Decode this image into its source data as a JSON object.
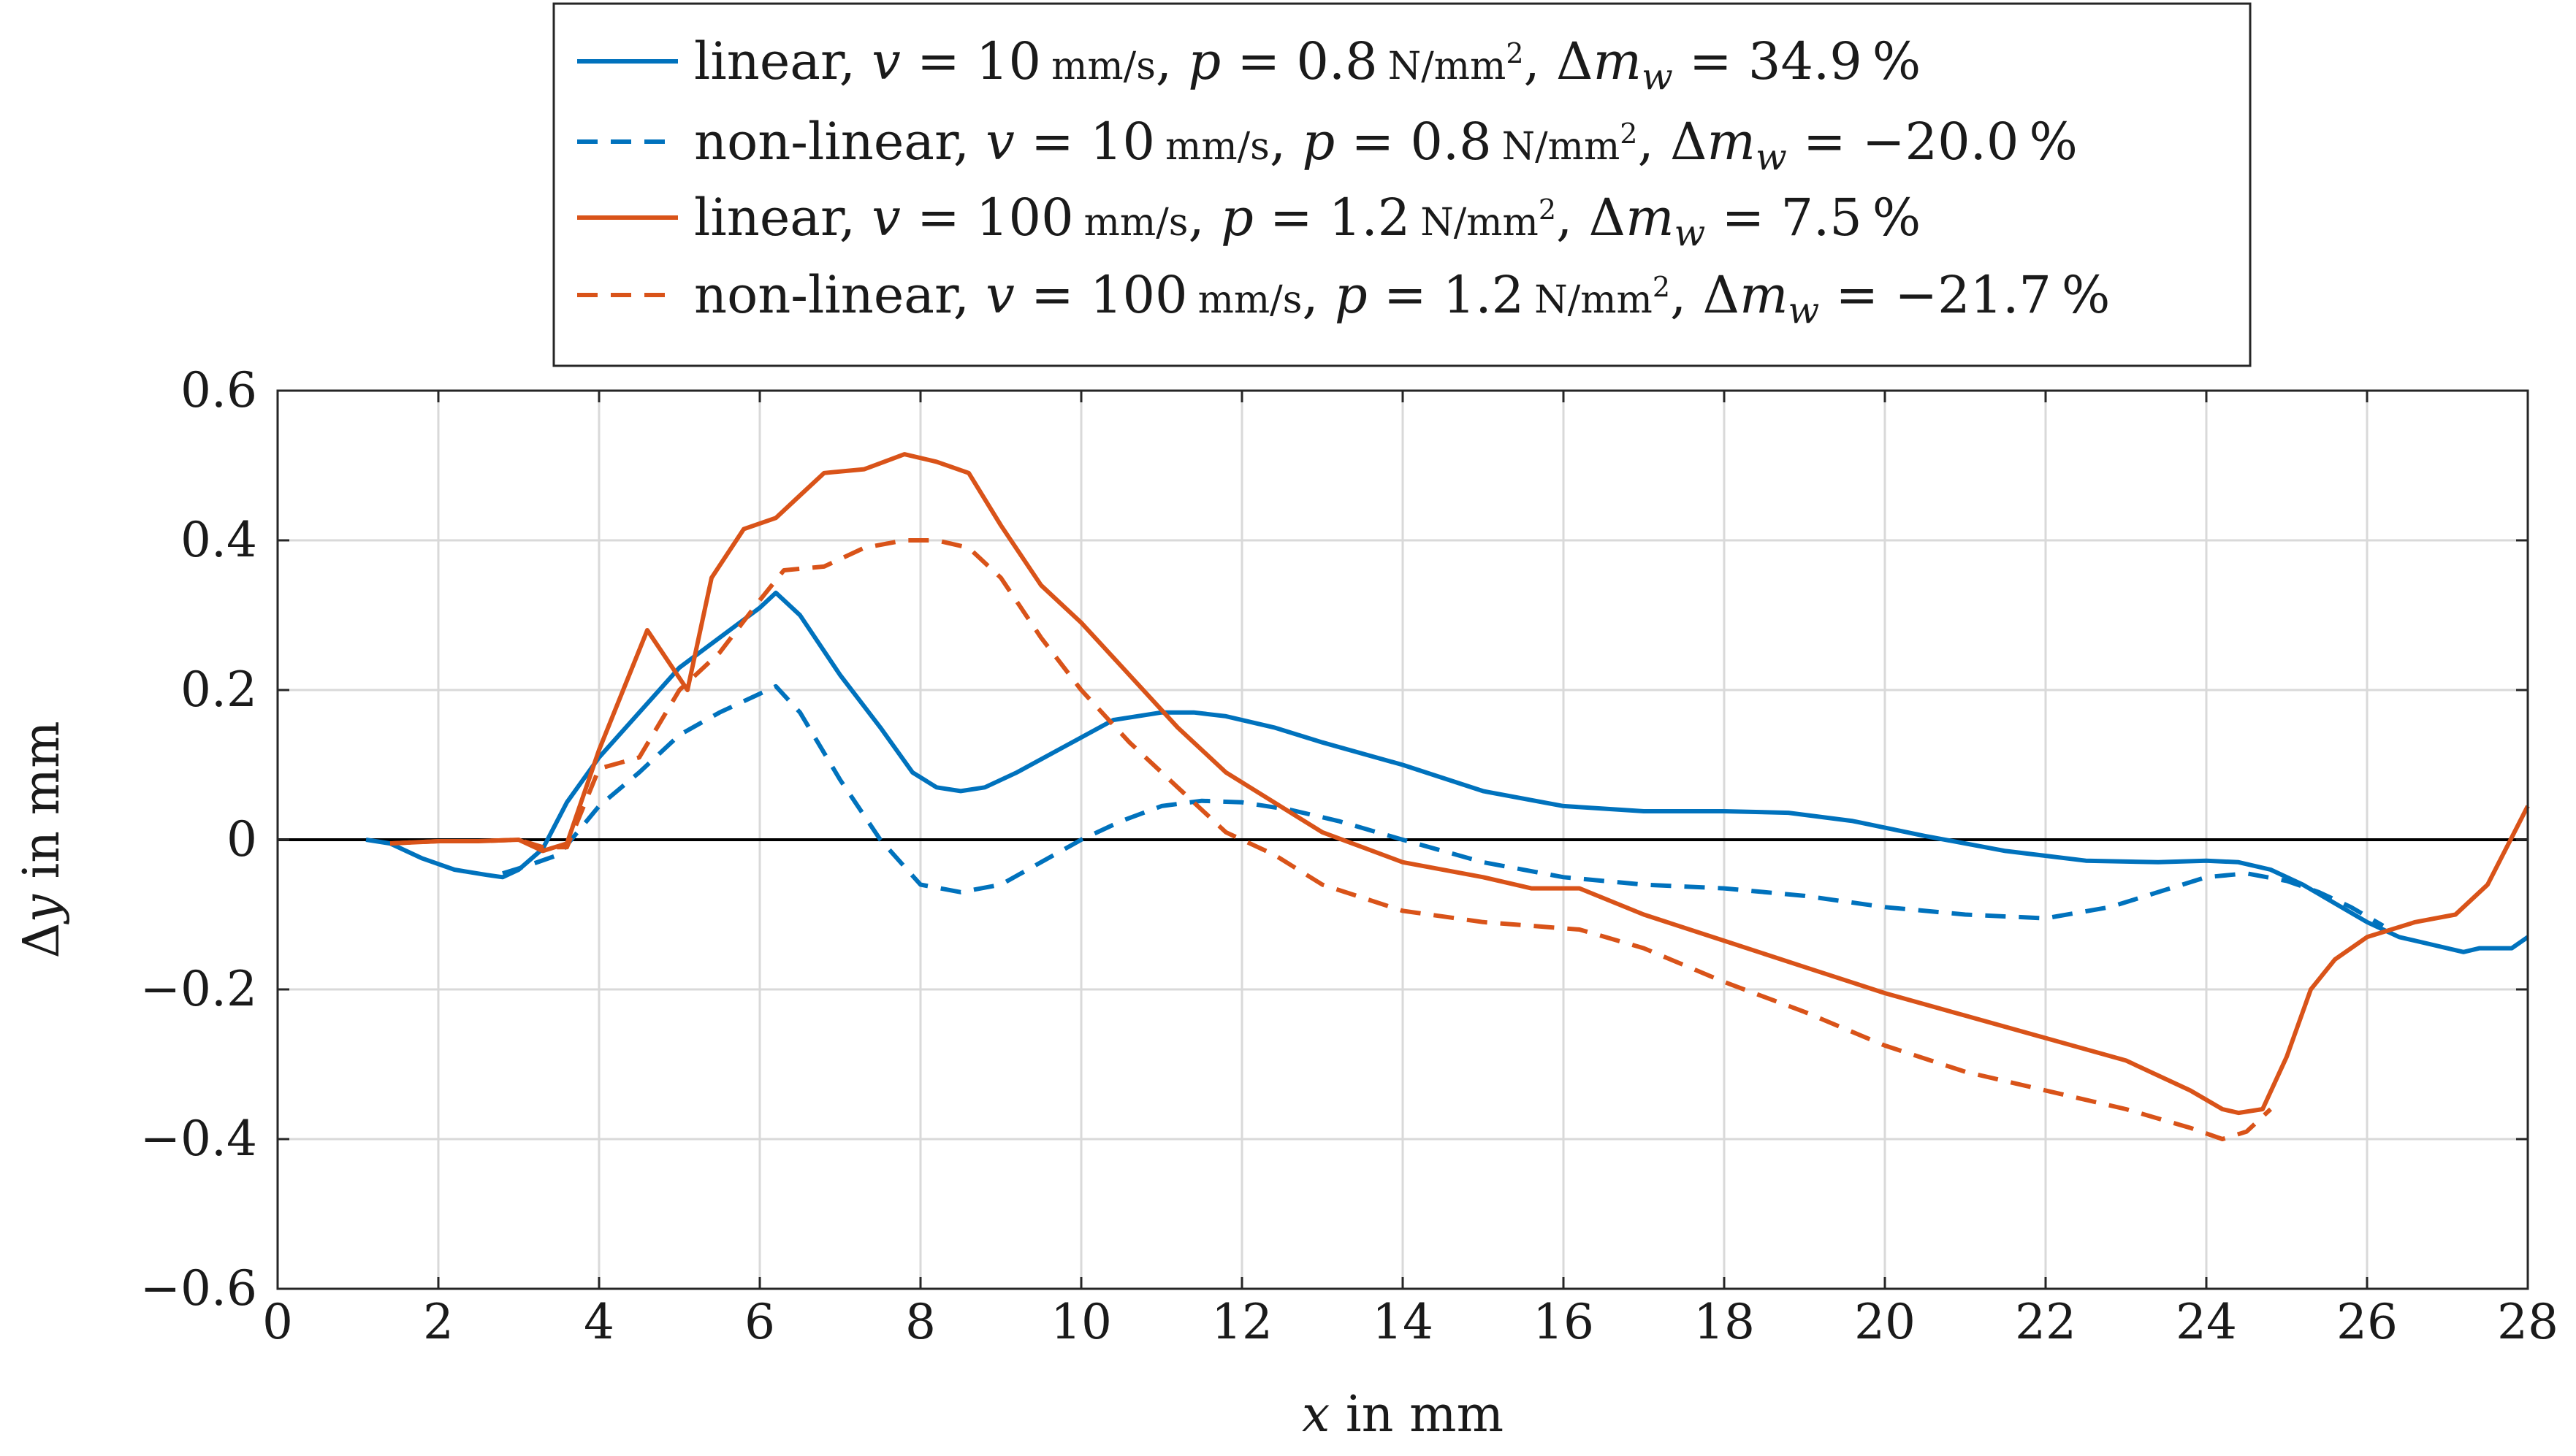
{
  "chart_data": {
    "type": "line",
    "title": "",
    "xlabel": "x in mm",
    "ylabel": "Δy in mm",
    "xlim": [
      0,
      28
    ],
    "ylim": [
      -0.6,
      0.6
    ],
    "xticks": [
      0,
      2,
      4,
      6,
      8,
      10,
      12,
      14,
      16,
      18,
      20,
      22,
      24,
      26,
      28
    ],
    "xtick_labels": [
      "0",
      "2",
      "4",
      "6",
      "8",
      "10",
      "12",
      "14",
      "16",
      "18",
      "20",
      "22",
      "24",
      "26",
      "28"
    ],
    "yticks": [
      -0.6,
      -0.4,
      -0.2,
      0,
      0.2,
      0.4,
      0.6
    ],
    "ytick_labels": [
      "−0.6",
      "−0.4",
      "−0.2",
      "0",
      "0.2",
      "0.4",
      "0.6"
    ],
    "grid": true,
    "zero_line": true,
    "legend_position": "top-center",
    "series": [
      {
        "name": "linear, v = 10 mm/s, p = 0.8 N/mm², Δm_w = 34.9 %",
        "label": "linear, v = 10 mm/s, p = 0.8 N/mm², Δm_w = 34.9 %",
        "color": "#0072BD",
        "dash": "solid",
        "x": [
          1.1,
          1.4,
          1.8,
          2.2,
          2.6,
          2.8,
          3.0,
          3.3,
          3.6,
          4.0,
          4.5,
          5.0,
          5.5,
          6.0,
          6.2,
          6.5,
          7.0,
          7.5,
          7.9,
          8.2,
          8.5,
          8.8,
          9.2,
          9.8,
          10.4,
          11.0,
          11.4,
          11.8,
          12.4,
          13.0,
          14.0,
          15.0,
          16.0,
          17.0,
          18.0,
          18.8,
          19.6,
          20.5,
          21.5,
          22.5,
          23.4,
          24.0,
          24.4,
          24.8,
          25.2,
          25.6,
          26.0,
          26.4,
          26.8,
          27.2,
          27.4,
          27.8,
          28.0
        ],
        "y": [
          0.0,
          -0.005,
          -0.025,
          -0.04,
          -0.047,
          -0.05,
          -0.04,
          -0.012,
          0.05,
          0.11,
          0.17,
          0.23,
          0.27,
          0.31,
          0.33,
          0.3,
          0.22,
          0.15,
          0.09,
          0.07,
          0.065,
          0.07,
          0.09,
          0.125,
          0.16,
          0.17,
          0.17,
          0.165,
          0.15,
          0.13,
          0.1,
          0.065,
          0.045,
          0.038,
          0.038,
          0.036,
          0.025,
          0.005,
          -0.015,
          -0.028,
          -0.03,
          -0.028,
          -0.03,
          -0.04,
          -0.06,
          -0.085,
          -0.11,
          -0.13,
          -0.14,
          -0.15,
          -0.145,
          -0.145,
          -0.13
        ]
      },
      {
        "name": "non-linear, v = 10 mm/s, p = 0.8 N/mm², Δm_w = −20.0 %",
        "label": "non-linear, v = 10 mm/s, p = 0.8 N/mm², Δm_w = −20.0 %",
        "color": "#0072BD",
        "dash": "dashed",
        "x": [
          2.8,
          3.1,
          3.5,
          4.0,
          4.5,
          5.0,
          5.5,
          6.0,
          6.2,
          6.5,
          7.0,
          7.5,
          8.0,
          8.5,
          9.0,
          9.5,
          10.0,
          10.5,
          11.0,
          11.5,
          12.0,
          12.6,
          13.2,
          14.0,
          15.0,
          16.0,
          17.0,
          18.0,
          19.0,
          20.0,
          21.0,
          22.0,
          22.8,
          23.4,
          24.0,
          24.5,
          25.0,
          25.4,
          25.8,
          26.2
        ],
        "y": [
          -0.045,
          -0.035,
          -0.02,
          0.045,
          0.09,
          0.14,
          0.17,
          0.195,
          0.205,
          0.17,
          0.08,
          0.0,
          -0.06,
          -0.07,
          -0.06,
          -0.03,
          0.0,
          0.025,
          0.045,
          0.052,
          0.05,
          0.04,
          0.025,
          0.0,
          -0.03,
          -0.05,
          -0.06,
          -0.065,
          -0.075,
          -0.09,
          -0.1,
          -0.105,
          -0.09,
          -0.07,
          -0.05,
          -0.045,
          -0.055,
          -0.07,
          -0.09,
          -0.115
        ]
      },
      {
        "name": "linear, v = 100 mm/s, p = 1.2 N/mm², Δm_w = 7.5 %",
        "label": "linear, v = 100 mm/s, p = 1.2 N/mm², Δm_w = 7.5 %",
        "color": "#D95319",
        "dash": "solid",
        "x": [
          1.4,
          2.0,
          2.5,
          3.0,
          3.3,
          3.6,
          4.0,
          4.6,
          5.1,
          5.4,
          5.8,
          6.2,
          6.5,
          6.8,
          7.3,
          7.8,
          8.2,
          8.6,
          9.0,
          9.5,
          10.0,
          10.6,
          11.2,
          11.8,
          12.4,
          13.0,
          14.0,
          15.0,
          15.6,
          16.2,
          17.0,
          18.0,
          19.0,
          20.0,
          21.0,
          22.0,
          23.0,
          23.8,
          24.2,
          24.4,
          24.7,
          25.0,
          25.3,
          25.6,
          26.0,
          26.6,
          27.1,
          27.5,
          28.0
        ],
        "y": [
          -0.005,
          -0.002,
          -0.002,
          0.0,
          -0.015,
          -0.005,
          0.12,
          0.28,
          0.2,
          0.35,
          0.415,
          0.43,
          0.46,
          0.49,
          0.495,
          0.515,
          0.505,
          0.49,
          0.42,
          0.34,
          0.29,
          0.22,
          0.15,
          0.09,
          0.05,
          0.01,
          -0.03,
          -0.05,
          -0.065,
          -0.065,
          -0.1,
          -0.135,
          -0.17,
          -0.205,
          -0.235,
          -0.265,
          -0.295,
          -0.335,
          -0.36,
          -0.365,
          -0.36,
          -0.29,
          -0.2,
          -0.16,
          -0.13,
          -0.11,
          -0.1,
          -0.06,
          0.045
        ]
      },
      {
        "name": "non-linear, v = 100 mm/s, p = 1.2 N/mm², Δm_w = −21.7 %",
        "label": "non-linear, v = 100 mm/s, p = 1.2 N/mm², Δm_w = −21.7 %",
        "color": "#D95319",
        "dash": "dashed",
        "x": [
          1.4,
          2.0,
          2.5,
          3.0,
          3.3,
          3.6,
          4.0,
          4.5,
          5.0,
          5.5,
          6.0,
          6.3,
          6.8,
          7.3,
          7.8,
          8.2,
          8.6,
          9.0,
          9.5,
          10.0,
          10.6,
          11.2,
          11.8,
          12.4,
          13.0,
          14.0,
          15.0,
          15.6,
          16.2,
          17.0,
          18.0,
          19.0,
          20.0,
          21.0,
          22.0,
          23.0,
          23.8,
          24.2,
          24.5,
          24.8
        ],
        "y": [
          -0.005,
          -0.002,
          -0.002,
          0.0,
          -0.01,
          -0.01,
          0.095,
          0.11,
          0.2,
          0.25,
          0.32,
          0.36,
          0.365,
          0.39,
          0.4,
          0.4,
          0.39,
          0.35,
          0.27,
          0.2,
          0.13,
          0.07,
          0.01,
          -0.02,
          -0.06,
          -0.095,
          -0.11,
          -0.115,
          -0.12,
          -0.145,
          -0.19,
          -0.23,
          -0.275,
          -0.31,
          -0.335,
          -0.36,
          -0.385,
          -0.4,
          -0.39,
          -0.36
        ]
      }
    ]
  },
  "legend": {
    "entries": [
      {
        "label": "linear,",
        "v": "10",
        "p": "0.8",
        "dm": "34.9"
      },
      {
        "label": "non-linear,",
        "v": "10",
        "p": "0.8",
        "dm": "−20.0"
      },
      {
        "label": "linear,",
        "v": "100",
        "p": "1.2",
        "dm": "7.5"
      },
      {
        "label": "non-linear,",
        "v": "100",
        "p": "1.2",
        "dm": "−21.7"
      }
    ]
  }
}
